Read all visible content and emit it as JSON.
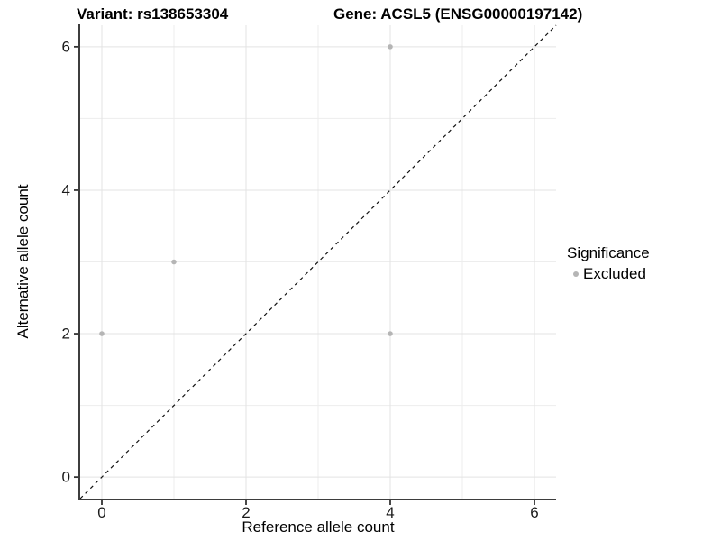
{
  "titles": {
    "variant": "Variant: rs138653304",
    "gene": "Gene: ACSL5 (ENSG00000197142)"
  },
  "chart_data": {
    "type": "scatter",
    "title_left": "Variant: rs138653304",
    "title_right": "Gene: ACSL5 (ENSG00000197142)",
    "xlabel": "Reference allele count",
    "ylabel": "Alternative allele count",
    "xlim": [
      -0.3,
      6.3
    ],
    "ylim": [
      -0.3,
      6.3
    ],
    "x_ticks": [
      0,
      2,
      4,
      6
    ],
    "y_ticks": [
      0,
      2,
      4,
      6
    ],
    "x_minor_ticks": [
      1,
      3,
      5
    ],
    "y_minor_ticks": [
      1,
      3,
      5
    ],
    "grid": true,
    "legend_position": "right",
    "legend": {
      "title": "Significance",
      "items": [
        {
          "label": "Excluded",
          "color": "#b5b5b5"
        }
      ]
    },
    "series": [
      {
        "name": "Excluded",
        "color": "#b5b5b5",
        "marker": "circle",
        "marker_radius": 2.8,
        "points": [
          [
            0,
            2
          ],
          [
            1,
            3
          ],
          [
            4,
            2
          ],
          [
            4,
            6
          ]
        ]
      }
    ],
    "reference_line": {
      "type": "identity",
      "style": "dashed",
      "color": "#111111",
      "from": [
        -0.3,
        -0.3
      ],
      "to": [
        6.3,
        6.3
      ]
    },
    "colors": {
      "grid_major": "#e3e3e3",
      "grid_minor": "#ededed",
      "axis_line": "#3d3d3d",
      "tick_mark": "#333333",
      "background": "#ffffff"
    }
  }
}
